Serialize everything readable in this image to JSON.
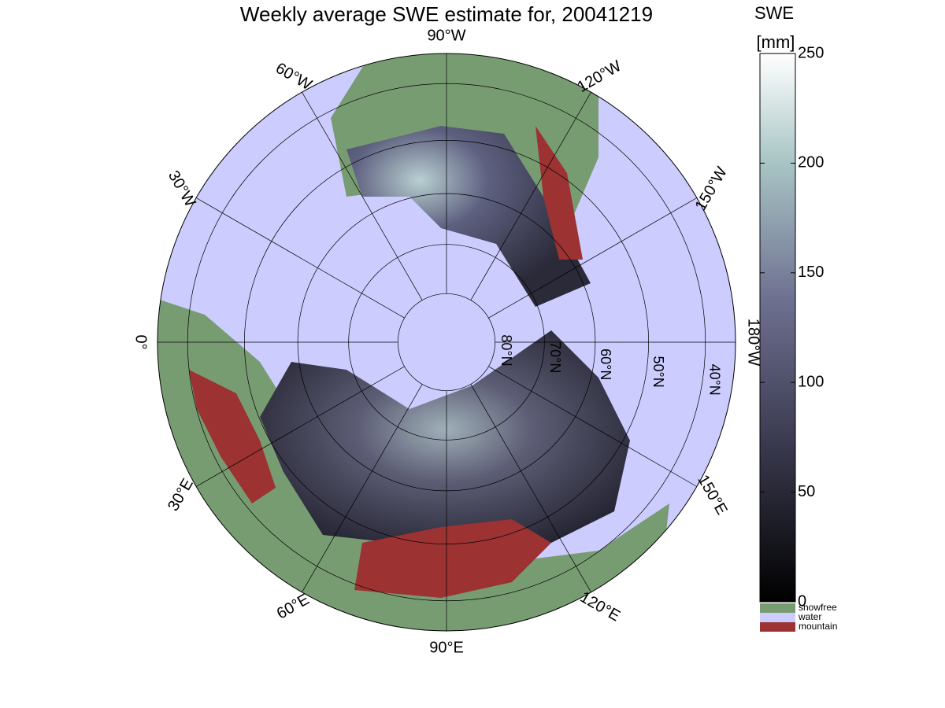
{
  "title": "Weekly average SWE estimate for, 20041219",
  "longitude_labels": [
    {
      "value": -90,
      "label": "90°W"
    },
    {
      "value": -120,
      "label": "120°W"
    },
    {
      "value": -150,
      "label": "150°W"
    },
    {
      "value": 180,
      "label": "180°W"
    },
    {
      "value": 150,
      "label": "150°E"
    },
    {
      "value": 120,
      "label": "120°E"
    },
    {
      "value": 90,
      "label": "90°E"
    },
    {
      "value": 60,
      "label": "60°E"
    },
    {
      "value": 30,
      "label": "30°E"
    },
    {
      "value": 0,
      "label": "0°"
    },
    {
      "value": -30,
      "label": "30°W"
    },
    {
      "value": -60,
      "label": "60°W"
    }
  ],
  "latitude_labels": [
    {
      "value": 80,
      "label": "80°N"
    },
    {
      "value": 70,
      "label": "70°N"
    },
    {
      "value": 60,
      "label": "60°N"
    },
    {
      "value": 50,
      "label": "50°N"
    },
    {
      "value": 40,
      "label": "40°N"
    }
  ],
  "colorbar": {
    "label": "SWE",
    "unit": "[mm]",
    "lim": [
      0,
      250
    ],
    "ticks": [
      0,
      50,
      100,
      150,
      200,
      250
    ]
  },
  "legend": [
    {
      "name": "snowfree",
      "color": "#789c72"
    },
    {
      "name": "water",
      "color": "#ccccff"
    },
    {
      "name": "mountain",
      "color": "#9c3232"
    }
  ]
}
